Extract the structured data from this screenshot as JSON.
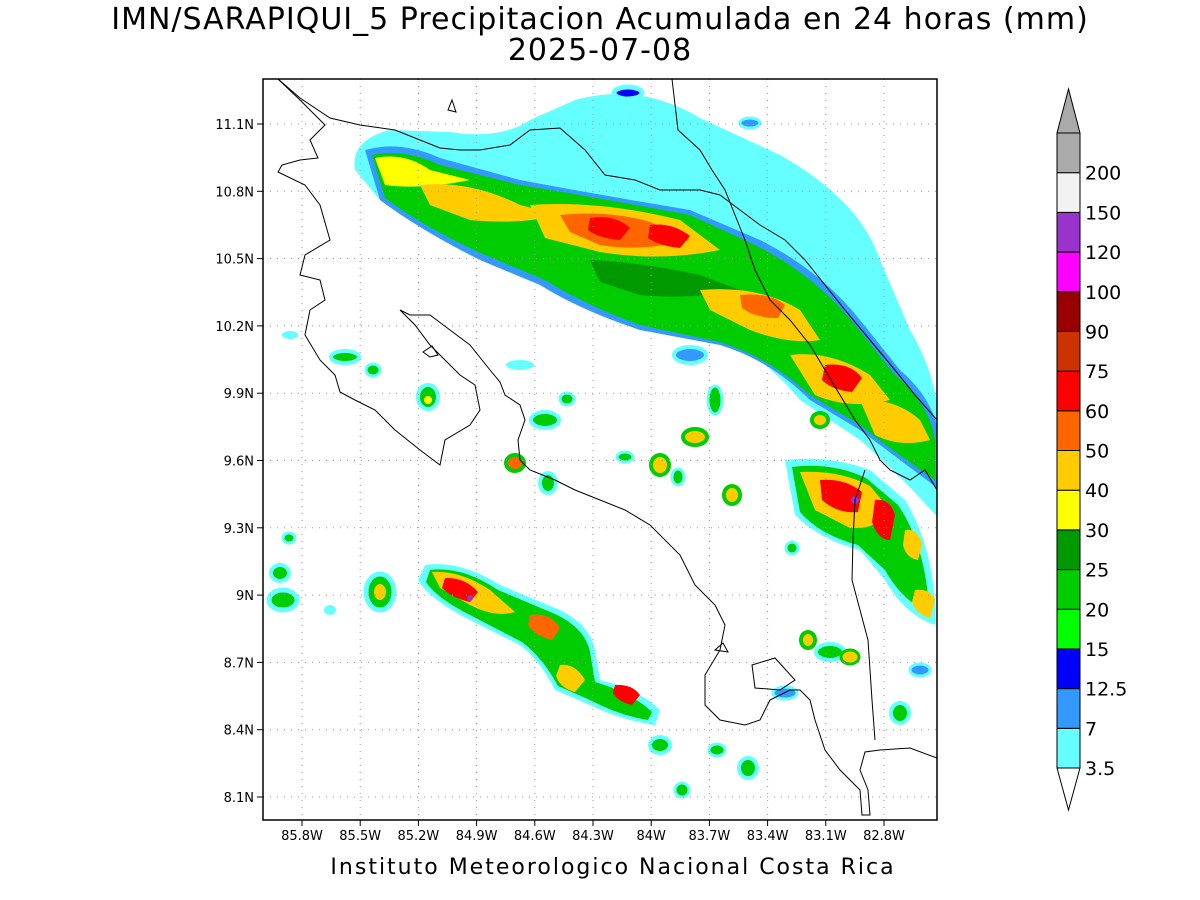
{
  "title_line1": "IMN/SARAPIQUI_5 Precipitacion Acumulada en 24 horas (mm)",
  "title_line2": "2025-07-08",
  "footer": "Instituto Meteorologico Nacional Costa Rica",
  "lat_ticks": [
    "11.1N",
    "10.8N",
    "10.5N",
    "10.2N",
    "9.9N",
    "9.6N",
    "9.3N",
    "9N",
    "8.7N",
    "8.4N",
    "8.1N"
  ],
  "lon_ticks": [
    "85.8W",
    "85.5W",
    "85.2W",
    "84.9W",
    "84.6W",
    "84.3W",
    "84W",
    "83.7W",
    "83.4W",
    "83.1W",
    "82.8W"
  ],
  "colorbar": [
    {
      "label": "3.5",
      "color": "#66ffff"
    },
    {
      "label": "7",
      "color": "#3399ff"
    },
    {
      "label": "12.5",
      "color": "#0000ff"
    },
    {
      "label": "15",
      "color": "#00ff00"
    },
    {
      "label": "20",
      "color": "#00cc00"
    },
    {
      "label": "25",
      "color": "#009900"
    },
    {
      "label": "30",
      "color": "#ffff00"
    },
    {
      "label": "40",
      "color": "#ffcc00"
    },
    {
      "label": "50",
      "color": "#ff6600"
    },
    {
      "label": "60",
      "color": "#ff0000"
    },
    {
      "label": "75",
      "color": "#cc3300"
    },
    {
      "label": "90",
      "color": "#990000"
    },
    {
      "label": "100",
      "color": "#ff00ff"
    },
    {
      "label": "120",
      "color": "#9933cc"
    },
    {
      "label": "150",
      "color": "#f2f2f2"
    },
    {
      "label": "200",
      "color": "#aaaaaa"
    }
  ]
}
